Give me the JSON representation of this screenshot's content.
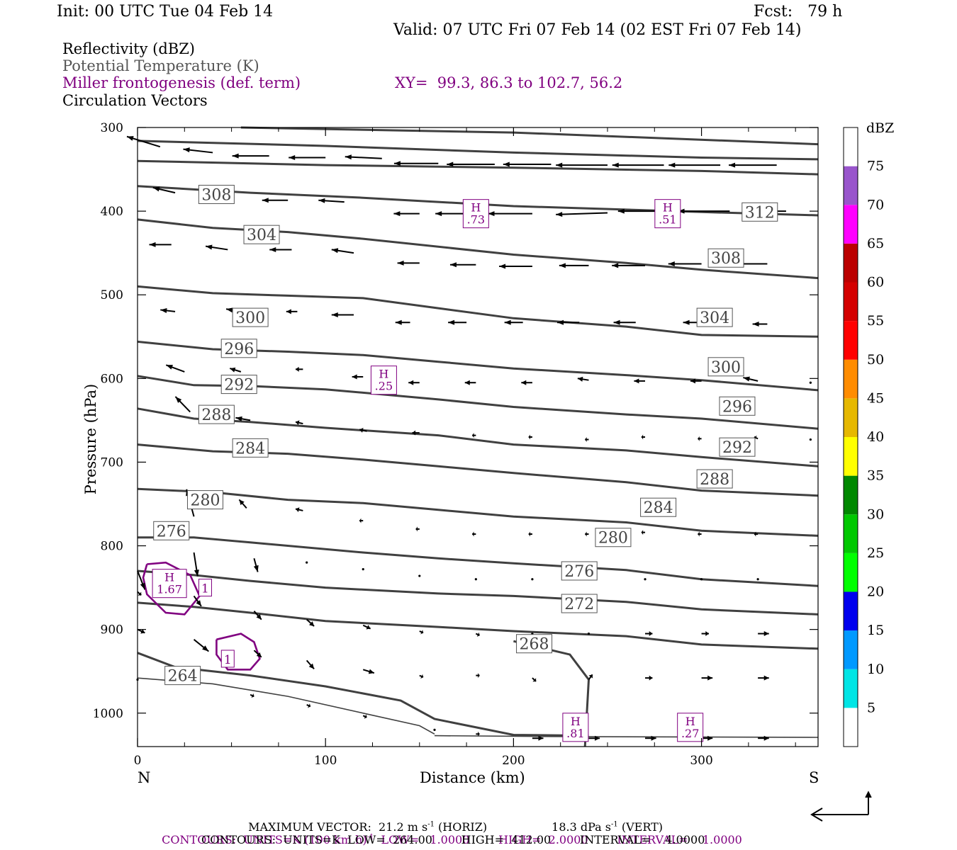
{
  "header": {
    "init": "Init: 00 UTC Tue 04 Feb 14",
    "fcst": "Fcst:   79 h",
    "valid": "Valid: 07 UTC Fri 07 Feb 14 (02 EST Fri 07 Feb 14)"
  },
  "fields": {
    "reflectivity": "Reflectivity (dBZ)",
    "theta": "Potential Temperature (K)",
    "miller": "Miller frontogenesis (def. term)",
    "xy": "XY=  99.3, 86.3 to 102.7, 56.2",
    "vectors": "Circulation Vectors"
  },
  "colors": {
    "theta_contour": "#404040",
    "frontogenesis": "#800080",
    "vector": "#000000"
  },
  "chart_data": {
    "type": "contour",
    "xlabel": "Distance (km)",
    "ylabel": "Pressure (hPa)",
    "xlim": [
      0,
      362
    ],
    "ylim": [
      1040,
      300
    ],
    "x_ticks": [
      "0",
      "100",
      "200",
      "300"
    ],
    "y_ticks": [
      "300",
      "400",
      "500",
      "600",
      "700",
      "800",
      "900",
      "1000"
    ],
    "x_end_labels": {
      "left": "N",
      "right": "S"
    },
    "theta_labels": [
      {
        "value": "308",
        "x": 42,
        "p": 380
      },
      {
        "value": "304",
        "x": 66,
        "p": 428
      },
      {
        "value": "300",
        "x": 60,
        "p": 527
      },
      {
        "value": "296",
        "x": 54,
        "p": 564
      },
      {
        "value": "292",
        "x": 54,
        "p": 607
      },
      {
        "value": "288",
        "x": 42,
        "p": 643
      },
      {
        "value": "284",
        "x": 60,
        "p": 683
      },
      {
        "value": "280",
        "x": 36,
        "p": 745
      },
      {
        "value": "276",
        "x": 18,
        "p": 782
      },
      {
        "value": "264",
        "x": 24,
        "p": 955
      },
      {
        "value": "312",
        "x": 331,
        "p": 401
      },
      {
        "value": "308",
        "x": 313,
        "p": 456
      },
      {
        "value": "304",
        "x": 307,
        "p": 527
      },
      {
        "value": "300",
        "x": 313,
        "p": 586
      },
      {
        "value": "296",
        "x": 319,
        "p": 633
      },
      {
        "value": "292",
        "x": 319,
        "p": 682
      },
      {
        "value": "288",
        "x": 307,
        "p": 720
      },
      {
        "value": "284",
        "x": 277,
        "p": 754
      },
      {
        "value": "280",
        "x": 253,
        "p": 790
      },
      {
        "value": "276",
        "x": 235,
        "p": 830
      },
      {
        "value": "272",
        "x": 235,
        "p": 869
      },
      {
        "value": "268",
        "x": 211,
        "p": 917
      }
    ],
    "highs": [
      {
        "label": "H",
        "value": ".73",
        "x": 180,
        "p": 403
      },
      {
        "label": "H",
        "value": ".51",
        "x": 282,
        "p": 403
      },
      {
        "label": "H",
        "value": ".25",
        "x": 131,
        "p": 602
      },
      {
        "label": "H",
        "value": "1.67",
        "x": 17,
        "p": 845
      },
      {
        "label": "H",
        "value": ".81",
        "x": 233,
        "p": 1017
      },
      {
        "label": "H",
        "value": ".27",
        "x": 294,
        "p": 1017
      }
    ],
    "front_labels": [
      {
        "value": "1",
        "x": 36,
        "p": 850
      },
      {
        "value": "1",
        "x": 48,
        "p": 935
      }
    ],
    "legend": {
      "title": "dBZ",
      "levels": [
        "5",
        "10",
        "15",
        "20",
        "25",
        "30",
        "35",
        "40",
        "45",
        "50",
        "55",
        "60",
        "65",
        "70",
        "75"
      ],
      "colors": [
        "#ffffff",
        "#00e5e5",
        "#0099ff",
        "#0000ee",
        "#00ff00",
        "#00c800",
        "#008800",
        "#ffff00",
        "#e6b800",
        "#ff8c00",
        "#ff0000",
        "#d40000",
        "#bb0000",
        "#ff00ff",
        "#9955cc",
        "#ffffff"
      ]
    }
  },
  "footer": {
    "max_vector": "MAXIMUM VECTOR:  21.2 m s",
    "max_vector_sup": "-1",
    "max_vector_horiz": " (HORIZ)",
    "max_vector_vert": "18.3 dPa s",
    "max_vector_vert_sup": "-1",
    "max_vector_vert_end": " (VERT)",
    "contours1": "CONTOURS:  UNITS=K (100 km h)",
    "contours1_sup": "-1",
    "contours1_rest": "  LOW=   1.0000        HIGH=  2.0000        INTERVAL=    1.0000",
    "contours2": "CONTOURS:  UNITS=K  LOW=  264.00        HIGH=  412.00        INTERVAL=    4.0000"
  }
}
